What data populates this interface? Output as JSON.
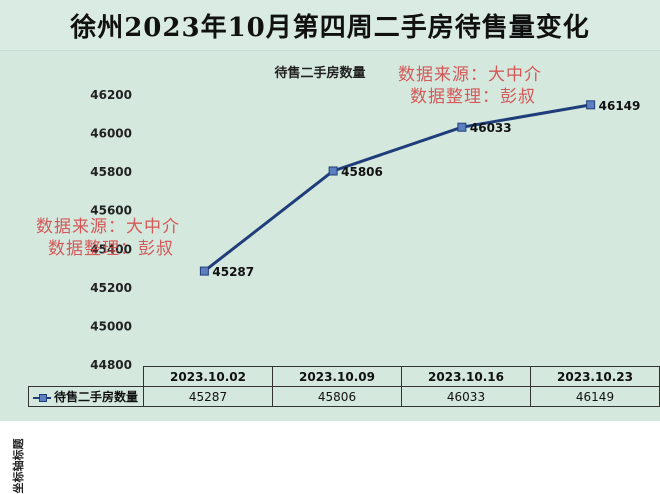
{
  "banner_title": "徐州2023年10月第四周二手房待售量变化",
  "watermarks": [
    {
      "line1": "数据来源：大中介",
      "line2": "数据整理：彭叔"
    },
    {
      "line1": "数据来源：大中介",
      "line2": "数据整理：彭叔"
    }
  ],
  "colors": {
    "line": "#1f3d7a",
    "marker": "#5b7fbf",
    "background": "#d5e8de",
    "banner": "#d9ebe2",
    "watermark": "#d44a4a"
  },
  "chart_data": {
    "type": "line",
    "title": "待售二手房数量",
    "ylabel": "坐标轴标题",
    "xlabel": "",
    "categories": [
      "2023.10.02",
      "2023.10.09",
      "2023.10.16",
      "2023.10.23"
    ],
    "series": [
      {
        "name": "待售二手房数量",
        "values": [
          45287,
          45806,
          46033,
          46149
        ]
      }
    ],
    "data_labels": [
      "45287",
      "45806",
      "46033",
      "46149"
    ],
    "ylim": [
      44800,
      46200
    ],
    "yticks": [
      44800,
      45000,
      45200,
      45400,
      45600,
      45800,
      46000,
      46200
    ],
    "grid": false,
    "legend": "data-table"
  }
}
